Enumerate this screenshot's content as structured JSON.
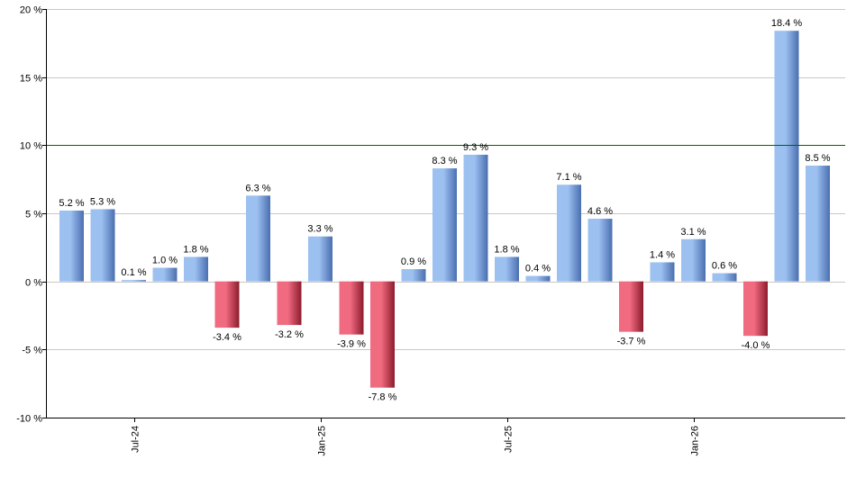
{
  "chart_data": {
    "type": "bar",
    "title": "",
    "xlabel": "",
    "ylabel": "",
    "ylim": [
      -10,
      20
    ],
    "y_ticks": [
      -10,
      -5,
      0,
      5,
      10,
      15,
      20
    ],
    "y_tick_labels": [
      "-10 %",
      "-5 %",
      "0 %",
      "5 %",
      "10 %",
      "15 %",
      "20 %"
    ],
    "x_tick_labels": [
      {
        "label": "Jul-24",
        "index": 2
      },
      {
        "label": "Jan-25",
        "index": 8
      },
      {
        "label": "Jul-25",
        "index": 14
      },
      {
        "label": "Jan-26",
        "index": 20
      }
    ],
    "reference_line": {
      "value": 10,
      "color": "#006400"
    },
    "grid": true,
    "values": [
      5.2,
      5.3,
      0.1,
      1.0,
      1.8,
      -3.4,
      6.3,
      -3.2,
      3.3,
      -3.9,
      -7.8,
      0.9,
      8.3,
      9.3,
      1.8,
      0.4,
      7.1,
      4.6,
      -3.7,
      1.4,
      3.1,
      0.6,
      -4.0,
      18.4,
      8.5
    ],
    "data_labels": [
      "5.2 %",
      "5.3 %",
      "0.1 %",
      "1.0 %",
      "1.8 %",
      "-3.4 %",
      "6.3 %",
      "-3.2 %",
      "3.3 %",
      "-3.9 %",
      "-7.8 %",
      "0.9 %",
      "8.3 %",
      "9.3 %",
      "1.8 %",
      "0.4 %",
      "7.1 %",
      "4.6 %",
      "-3.7 %",
      "1.4 %",
      "3.1 %",
      "0.6 %",
      "-4.0 %",
      "18.4 %",
      "8.5 %"
    ],
    "colors": {
      "positive_dark": "#4a6fb0",
      "positive_light": "#9cc0f0",
      "negative_dark": "#8c1c2c",
      "negative_light": "#f06a80",
      "grid": "#c8c8c8",
      "axis": "#000000"
    }
  }
}
